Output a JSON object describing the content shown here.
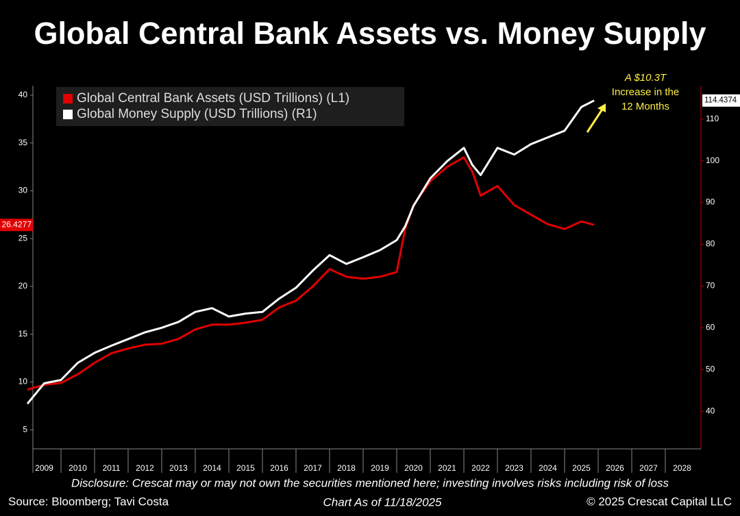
{
  "chart_data": {
    "type": "line",
    "title": "Global Central Bank Assets vs. Money Supply",
    "x": [
      2009,
      2009.5,
      2010,
      2010.5,
      2011,
      2011.5,
      2012,
      2012.5,
      2013,
      2013.5,
      2014,
      2014.5,
      2015,
      2015.5,
      2016,
      2016.5,
      2017,
      2017.5,
      2018,
      2018.5,
      2019,
      2019.5,
      2020,
      2020.25,
      2020.5,
      2021,
      2021.5,
      2022,
      2022.25,
      2022.5,
      2023,
      2023.5,
      2024,
      2024.5,
      2025,
      2025.5,
      2025.88
    ],
    "xlim": [
      2009,
      2029
    ],
    "xticks": [
      2009,
      2010,
      2011,
      2012,
      2013,
      2014,
      2015,
      2016,
      2017,
      2018,
      2019,
      2020,
      2021,
      2022,
      2023,
      2024,
      2025,
      2026,
      2027,
      2028
    ],
    "ylim": [
      3,
      41
    ],
    "yticks": [
      5,
      10,
      15,
      20,
      25,
      30,
      35,
      40
    ],
    "y2lim": [
      31,
      118
    ],
    "y2ticks": [
      40,
      50,
      60,
      70,
      80,
      90,
      100,
      110
    ],
    "series": [
      {
        "name": "Global Central Bank Assets (USD Trillions) (L1)",
        "color": "#e00000",
        "values": [
          9.2,
          9.7,
          9.9,
          10.8,
          12.0,
          13.0,
          13.5,
          13.9,
          14.0,
          14.5,
          15.5,
          16.0,
          16.0,
          16.2,
          16.5,
          17.8,
          18.5,
          20.0,
          21.8,
          21.0,
          20.8,
          21.0,
          21.5,
          26.0,
          28.5,
          31.0,
          32.5,
          33.5,
          32.0,
          29.5,
          30.5,
          28.5,
          27.5,
          26.5,
          26.0,
          26.8,
          26.4277
        ]
      },
      {
        "name": "Global Money Supply (USD Trillions) (R1)",
        "color": "#ffffff",
        "axis": "y2",
        "values": [
          41.8,
          46.7,
          47.5,
          51.6,
          54.0,
          55.7,
          57.3,
          58.9,
          60.0,
          61.4,
          63.8,
          64.7,
          62.7,
          63.4,
          63.8,
          67.0,
          69.6,
          73.7,
          77.4,
          75.3,
          76.9,
          78.6,
          81.0,
          84.3,
          89.2,
          95.8,
          99.9,
          103.1,
          99.0,
          96.6,
          103.1,
          101.5,
          104.0,
          105.6,
          107.2,
          112.9,
          114.4374
        ]
      }
    ],
    "annotation": [
      "A $10.3T",
      "Increase in the",
      "12 Months"
    ],
    "disclosure": "Disclosure: Crescat may or may not own the securities mentioned here; investing involves risks including risk of loss",
    "source": "Source: Bloomberg; Tavi Costa",
    "chart_as_of": "Chart As of 11/18/2025",
    "copyright": "© 2025 Crescat Capital LLC"
  }
}
